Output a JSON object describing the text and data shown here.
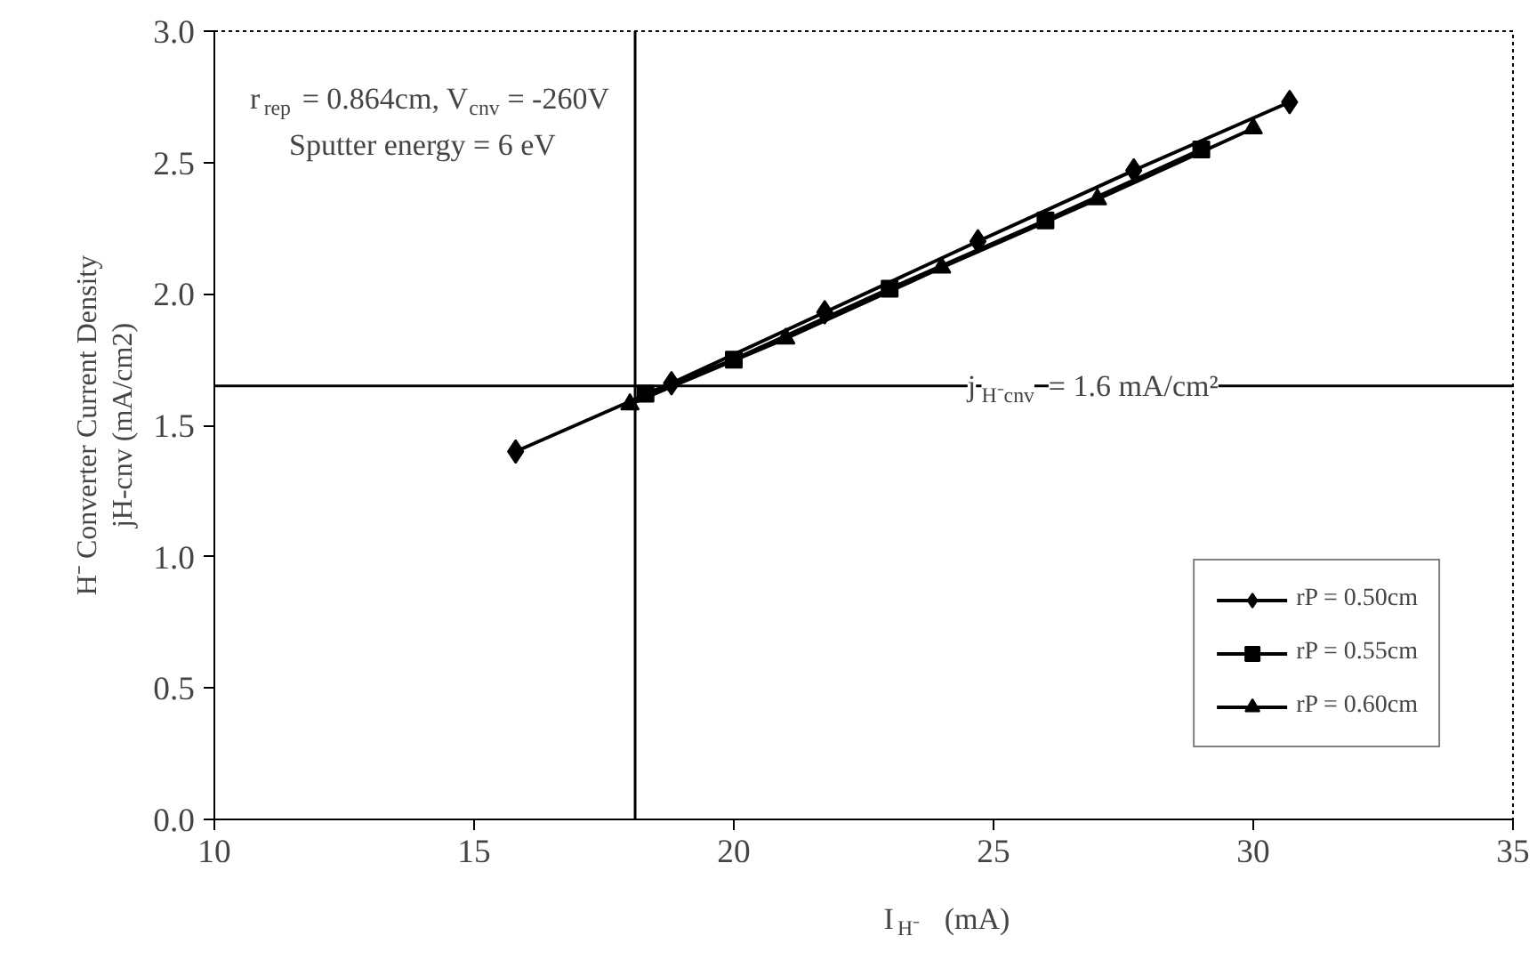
{
  "chart_data": {
    "type": "line",
    "xlabel": "I$_{H⁻}$  (mA)",
    "ylabel": "H⁻ Converter Current Density\njH-cnv (mA/cm2)",
    "xlim": [
      10,
      35
    ],
    "xticks": [
      10,
      15,
      20,
      25,
      30,
      35
    ],
    "ylim": [
      0,
      3
    ],
    "yticks": [
      {
        "value": 0,
        "label": "0.0"
      },
      {
        "value": 0.5,
        "label": "0.5"
      },
      {
        "value": 1,
        "label": "1.0"
      },
      {
        "value": 1.5,
        "label": "1.5"
      },
      {
        "value": 2,
        "label": "2.0"
      },
      {
        "value": 2.5,
        "label": "2.5"
      },
      {
        "value": 3,
        "label": "3.0"
      }
    ],
    "grid": false,
    "legend": "bottom right",
    "series": [
      {
        "name": "rP = 0.50cm",
        "color": "#000000",
        "marker": "diamond",
        "x": [
          15.8,
          18.8,
          21.75,
          24.7,
          27.7,
          30.7
        ],
        "values": [
          1.4,
          1.66,
          1.93,
          2.2,
          2.47,
          2.73
        ]
      },
      {
        "name": "rP = 0.55cm",
        "color": "#000000",
        "marker": "square",
        "x": [
          18.3,
          20,
          23,
          26,
          29
        ],
        "values": [
          1.62,
          1.75,
          2.02,
          2.28,
          2.55
        ]
      },
      {
        "name": "rP = 0.60cm",
        "color": "#000000",
        "marker": "triangle",
        "x": [
          18,
          21,
          24,
          27,
          30
        ],
        "values": [
          1.58,
          1.83,
          2.1,
          2.36,
          2.63
        ]
      }
    ],
    "ref_lines": [
      {
        "axis": "y",
        "value": 1.65,
        "color": "#000000"
      },
      {
        "axis": "x",
        "value": 18.1,
        "color": "#000000"
      }
    ],
    "annotations": [
      "r$_{rep}$ = 0.864cm, V$_{cnv}$ = -260V",
      "Sputter energy = 6 eV",
      {
        "text": "j$_{H⁻cnv}$ = 1.6 mA/cm²",
        "x": 24.5,
        "y": 1.65
      }
    ]
  }
}
